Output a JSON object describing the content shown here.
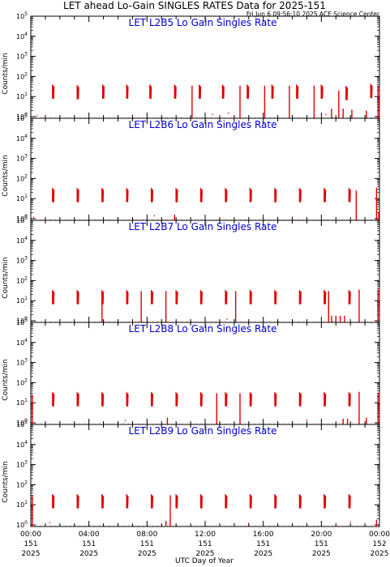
{
  "header": {
    "title": "LET ahead Lo-Gain SINGLES RATES Data for 2025-151",
    "timestamp": "Fri Jun  6 09:56:10 2025 ACE Science Center"
  },
  "colors": {
    "data": "#e00000",
    "panel_title": "#0000cc",
    "axes": "#000000"
  },
  "x_axis": {
    "label": "UTC Day of Year",
    "ticks": [
      {
        "time": "00:00",
        "day": "151",
        "year": "2025",
        "hour": 0
      },
      {
        "time": "04:00",
        "day": "151",
        "year": "2025",
        "hour": 4
      },
      {
        "time": "08:00",
        "day": "151",
        "year": "2025",
        "hour": 8
      },
      {
        "time": "12:00",
        "day": "151",
        "year": "2025",
        "hour": 12
      },
      {
        "time": "16:00",
        "day": "151",
        "year": "2025",
        "hour": 16
      },
      {
        "time": "20:00",
        "day": "151",
        "year": "2025",
        "hour": 20
      },
      {
        "time": "00:00",
        "day": "152",
        "year": "2025",
        "hour": 24
      }
    ]
  },
  "y_axis": {
    "label": "Counts/min",
    "scale": "log",
    "ylim": [
      1,
      100000
    ],
    "ticks": [
      {
        "base": "10",
        "exp": "0",
        "value": 1
      },
      {
        "base": "10",
        "exp": "1",
        "value": 10
      },
      {
        "base": "10",
        "exp": "2",
        "value": 100
      },
      {
        "base": "10",
        "exp": "3",
        "value": 1000
      },
      {
        "base": "10",
        "exp": "4",
        "value": 10000
      },
      {
        "base": "10",
        "exp": "5",
        "value": 100000
      }
    ]
  },
  "chart_data": [
    {
      "type": "line",
      "title": "LET L2B5 Lo Gain Singles Rate",
      "xlim": [
        0,
        24
      ],
      "ylim": [
        1,
        100000
      ],
      "yscale": "log",
      "bursts": [
        {
          "start": 1.5,
          "peak": 35
        },
        {
          "start": 3.2,
          "peak": 33
        },
        {
          "start": 4.95,
          "peak": 35
        },
        {
          "start": 6.6,
          "peak": 35
        },
        {
          "start": 8.2,
          "peak": 35
        },
        {
          "start": 9.9,
          "peak": 35
        },
        {
          "start": 11.6,
          "peak": 35
        },
        {
          "start": 13.2,
          "peak": 35
        },
        {
          "start": 14.9,
          "peak": 35
        },
        {
          "start": 16.6,
          "peak": 35
        },
        {
          "start": 18.3,
          "peak": 35
        },
        {
          "start": 20.0,
          "peak": 35
        },
        {
          "start": 21.7,
          "peak": 30
        },
        {
          "start": 23.4,
          "peak": 38
        }
      ],
      "spikes": [
        {
          "x": 11.1,
          "low": 0.8,
          "high": 35
        },
        {
          "x": 14.4,
          "low": 0.8,
          "high": 35
        },
        {
          "x": 16.1,
          "low": 0.8,
          "high": 35
        },
        {
          "x": 17.8,
          "low": 0.8,
          "high": 35
        },
        {
          "x": 19.5,
          "low": 0.8,
          "high": 35
        },
        {
          "x": 21.2,
          "low": 0.8,
          "high": 20
        },
        {
          "x": 20.7,
          "low": 0.8,
          "high": 2.5
        },
        {
          "x": 21.5,
          "low": 0.8,
          "high": 2.5
        },
        {
          "x": 22.1,
          "low": 0.8,
          "high": 2.2
        },
        {
          "x": 23.1,
          "low": 0.8,
          "high": 2.0
        },
        {
          "x": 23.9,
          "low": 0.8,
          "high": 35
        }
      ],
      "dots": [
        {
          "x": 0.4,
          "y": 1.1
        },
        {
          "x": 7.0,
          "y": 1.2
        },
        {
          "x": 12.5,
          "y": 1.3
        },
        {
          "x": 13.6,
          "y": 1.5
        },
        {
          "x": 20.3,
          "y": 1.3
        }
      ]
    },
    {
      "type": "line",
      "title": "LET L2B6 Lo Gain Singles Rate",
      "xlim": [
        0,
        24
      ],
      "ylim": [
        1,
        100000
      ],
      "yscale": "log",
      "bursts": [
        {
          "start": 1.5,
          "peak": 30
        },
        {
          "start": 3.2,
          "peak": 30
        },
        {
          "start": 4.9,
          "peak": 30
        },
        {
          "start": 6.6,
          "peak": 30
        },
        {
          "start": 8.3,
          "peak": 30
        },
        {
          "start": 10.0,
          "peak": 30
        },
        {
          "start": 11.7,
          "peak": 30
        },
        {
          "start": 13.4,
          "peak": 30
        },
        {
          "start": 15.1,
          "peak": 30
        },
        {
          "start": 16.8,
          "peak": 30
        },
        {
          "start": 18.5,
          "peak": 30
        },
        {
          "start": 20.2,
          "peak": 30
        },
        {
          "start": 21.9,
          "peak": 30
        }
      ],
      "spikes": [
        {
          "x": 9.9,
          "low": 0.8,
          "high": 1.6
        },
        {
          "x": 22.4,
          "low": 0.8,
          "high": 25
        },
        {
          "x": 23.8,
          "low": 0.8,
          "high": 35
        },
        {
          "x": 23.95,
          "low": 0.8,
          "high": 2.2
        }
      ],
      "dots": [
        {
          "x": 0.2,
          "y": 1.2
        },
        {
          "x": 8.5,
          "y": 1.4
        },
        {
          "x": 13.0,
          "y": 1.1
        },
        {
          "x": 18.0,
          "y": 1.2
        }
      ]
    },
    {
      "type": "line",
      "title": "LET L2B7 Lo Gain Singles Rate",
      "xlim": [
        0,
        24
      ],
      "ylim": [
        1,
        100000
      ],
      "yscale": "log",
      "bursts": [
        {
          "start": 1.5,
          "peak": 30
        },
        {
          "start": 3.2,
          "peak": 30
        },
        {
          "start": 4.9,
          "peak": 30
        },
        {
          "start": 6.6,
          "peak": 30
        },
        {
          "start": 8.3,
          "peak": 30
        },
        {
          "start": 10.0,
          "peak": 30
        },
        {
          "start": 11.7,
          "peak": 30
        },
        {
          "start": 13.4,
          "peak": 30
        },
        {
          "start": 15.1,
          "peak": 30
        },
        {
          "start": 16.8,
          "peak": 30
        },
        {
          "start": 18.5,
          "peak": 30
        },
        {
          "start": 20.2,
          "peak": 30
        },
        {
          "start": 21.9,
          "peak": 30
        }
      ],
      "spikes": [
        {
          "x": 4.9,
          "low": 0.8,
          "high": 30
        },
        {
          "x": 7.6,
          "low": 0.8,
          "high": 30
        },
        {
          "x": 9.3,
          "low": 0.8,
          "high": 30
        },
        {
          "x": 14.1,
          "low": 0.8,
          "high": 30
        },
        {
          "x": 20.5,
          "low": 0.8,
          "high": 30
        },
        {
          "x": 20.7,
          "low": 0.8,
          "high": 1.8
        },
        {
          "x": 21.0,
          "low": 0.8,
          "high": 1.8
        },
        {
          "x": 21.3,
          "low": 0.8,
          "high": 1.8
        },
        {
          "x": 21.6,
          "low": 0.8,
          "high": 1.8
        },
        {
          "x": 22.6,
          "low": 0.8,
          "high": 35
        },
        {
          "x": 23.9,
          "low": 0.8,
          "high": 35
        }
      ],
      "dots": [
        {
          "x": 13.5,
          "y": 1.2
        },
        {
          "x": 16.0,
          "y": 1.3
        }
      ]
    },
    {
      "type": "line",
      "title": "LET L2B8 Lo Gain Singles Rate",
      "xlim": [
        0,
        24
      ],
      "ylim": [
        1,
        100000
      ],
      "yscale": "log",
      "bursts": [
        {
          "start": 1.5,
          "peak": 30
        },
        {
          "start": 3.2,
          "peak": 30
        },
        {
          "start": 4.9,
          "peak": 30
        },
        {
          "start": 6.6,
          "peak": 30
        },
        {
          "start": 8.3,
          "peak": 30
        },
        {
          "start": 10.0,
          "peak": 30
        },
        {
          "start": 11.7,
          "peak": 30
        },
        {
          "start": 13.4,
          "peak": 30
        },
        {
          "start": 15.1,
          "peak": 30
        },
        {
          "start": 16.8,
          "peak": 30
        },
        {
          "start": 18.5,
          "peak": 30
        },
        {
          "start": 20.2,
          "peak": 30
        },
        {
          "start": 21.9,
          "peak": 30
        }
      ],
      "spikes": [
        {
          "x": 0.1,
          "low": 0.8,
          "high": 25
        },
        {
          "x": 9.4,
          "low": 0.8,
          "high": 1.8
        },
        {
          "x": 12.8,
          "low": 0.8,
          "high": 30
        },
        {
          "x": 14.4,
          "low": 0.8,
          "high": 30
        },
        {
          "x": 21.5,
          "low": 0.8,
          "high": 1.6
        },
        {
          "x": 21.8,
          "low": 0.8,
          "high": 1.6
        },
        {
          "x": 22.6,
          "low": 0.8,
          "high": 35
        },
        {
          "x": 23.1,
          "low": 0.8,
          "high": 1.8
        },
        {
          "x": 23.9,
          "low": 0.8,
          "high": 30
        }
      ],
      "dots": [
        {
          "x": 6.5,
          "y": 1.3
        },
        {
          "x": 8.0,
          "y": 1.2
        },
        {
          "x": 19.0,
          "y": 1.4
        }
      ]
    },
    {
      "type": "line",
      "title": "LET L2B9 Lo Gain Singles Rate",
      "xlim": [
        0,
        24
      ],
      "ylim": [
        1,
        100000
      ],
      "yscale": "log",
      "bursts": [
        {
          "start": 1.5,
          "peak": 30
        },
        {
          "start": 3.2,
          "peak": 30
        },
        {
          "start": 4.9,
          "peak": 30
        },
        {
          "start": 6.6,
          "peak": 30
        },
        {
          "start": 8.3,
          "peak": 30
        },
        {
          "start": 10.0,
          "peak": 30
        },
        {
          "start": 11.7,
          "peak": 30
        },
        {
          "start": 13.4,
          "peak": 30
        },
        {
          "start": 15.1,
          "peak": 30
        },
        {
          "start": 16.8,
          "peak": 30
        },
        {
          "start": 18.5,
          "peak": 30
        },
        {
          "start": 20.2,
          "peak": 30
        },
        {
          "start": 21.9,
          "peak": 30
        }
      ],
      "spikes": [
        {
          "x": 0.1,
          "low": 0.8,
          "high": 30
        },
        {
          "x": 9.6,
          "low": 0.8,
          "high": 30
        },
        {
          "x": 9.3,
          "low": 0.8,
          "high": 1.6
        },
        {
          "x": 23.8,
          "low": 0.8,
          "high": 1.8
        }
      ],
      "dots": [
        {
          "x": 1.3,
          "y": 1.3
        },
        {
          "x": 6.0,
          "y": 1.2
        },
        {
          "x": 15.0,
          "y": 1.2
        },
        {
          "x": 22.0,
          "y": 1.4
        }
      ]
    }
  ]
}
